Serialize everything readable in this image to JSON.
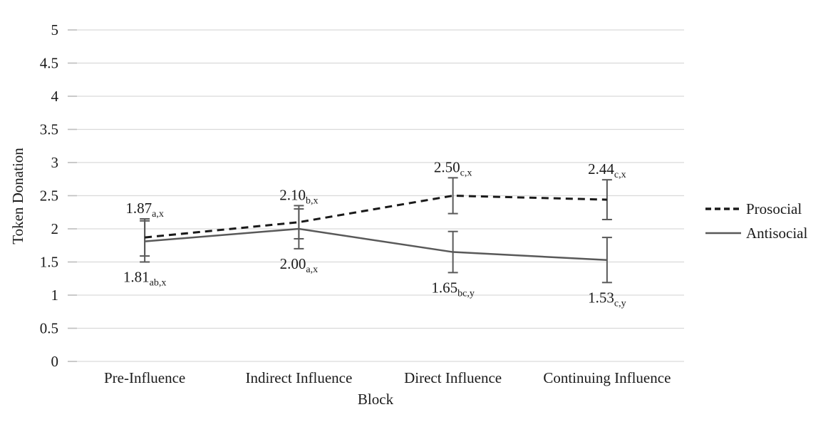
{
  "chart_data": {
    "type": "line",
    "title": "",
    "xlabel": "Block",
    "ylabel": "Token Donation",
    "ylim": [
      0,
      5
    ],
    "yticks": [
      "0",
      "0.5",
      "1",
      "1.5",
      "2",
      "2.5",
      "3",
      "3.5",
      "4",
      "4.5",
      "5"
    ],
    "categories": [
      "Pre-Influence",
      "Indirect Influence",
      "Direct Influence",
      "Continuing Influence"
    ],
    "grid": true,
    "legend_position": "right",
    "series": [
      {
        "name": "Prosocial",
        "line_style": "dashed",
        "color": "#1a1a1a",
        "values": [
          1.87,
          2.1,
          2.5,
          2.44
        ],
        "errors": [
          0.28,
          0.25,
          0.27,
          0.3
        ],
        "point_labels": [
          {
            "text": "1.87",
            "subscript": "a,x",
            "position": "above"
          },
          {
            "text": "2.10",
            "subscript": "b,x",
            "position": "above"
          },
          {
            "text": "2.50",
            "subscript": "c,x",
            "position": "above"
          },
          {
            "text": "2.44",
            "subscript": "c,x",
            "position": "above"
          }
        ]
      },
      {
        "name": "Antisocial",
        "line_style": "solid",
        "color": "#595959",
        "values": [
          1.81,
          2.0,
          1.65,
          1.53
        ],
        "errors": [
          0.31,
          0.3,
          0.31,
          0.34
        ],
        "point_labels": [
          {
            "text": "1.81",
            "subscript": "ab,x",
            "position": "below"
          },
          {
            "text": "2.00",
            "subscript": "a,x",
            "position": "below"
          },
          {
            "text": "1.65",
            "subscript": "bc,y",
            "position": "below"
          },
          {
            "text": "1.53",
            "subscript": "c,y",
            "position": "below"
          }
        ]
      }
    ],
    "colors": {
      "gridline": "#d9d9d9",
      "tick": "#bfbfbf",
      "text": "#1a1a1a",
      "error_bar": "#595959",
      "background": "#ffffff"
    }
  }
}
